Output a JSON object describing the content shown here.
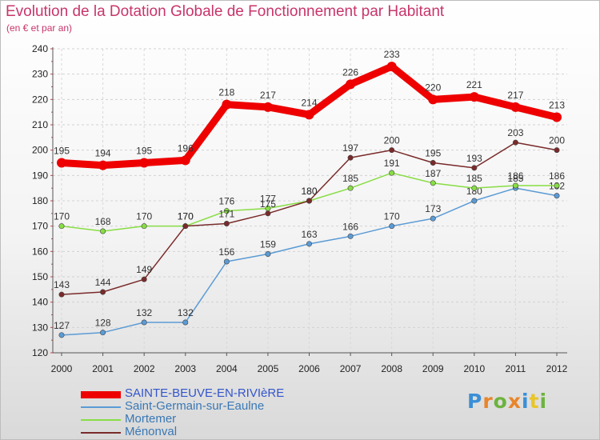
{
  "header": {
    "title": "Evolution de la Dotation Globale de Fonctionnement par Habitant",
    "subtitle": "(en € et par an)"
  },
  "brand": {
    "logo_text": "Proxiti",
    "logo_colors": [
      "#3a8fd6",
      "#e8852a",
      "#6db33f",
      "#e8852a",
      "#3a8fd6",
      "#e8c62a",
      "#6db33f"
    ]
  },
  "chart_data": {
    "type": "line",
    "title": "Evolution de la Dotation Globale de Fonctionnement par Habitant",
    "ylabel": "(en € et par an)",
    "xlabel": "",
    "ylim": [
      120,
      240
    ],
    "yticks": [
      120,
      130,
      140,
      150,
      160,
      170,
      180,
      190,
      200,
      210,
      220,
      230,
      240
    ],
    "categories": [
      "2000",
      "2001",
      "2002",
      "2003",
      "2004",
      "2005",
      "2006",
      "2007",
      "2008",
      "2009",
      "2010",
      "2011",
      "2012"
    ],
    "grid": true,
    "series": [
      {
        "name": "SAINTE-BEUVE-EN-RIVIèRE",
        "color": "#ee0000",
        "legend_color": "#3355cc",
        "emphasis": true,
        "values": [
          195,
          194,
          195,
          196,
          218,
          217,
          214,
          226,
          233,
          220,
          221,
          217,
          213
        ]
      },
      {
        "name": "Saint-Germain-sur-Eaulne",
        "color": "#5b9bd5",
        "legend_color": "#3a78b5",
        "values": [
          127,
          128,
          132,
          132,
          156,
          159,
          163,
          166,
          170,
          173,
          180,
          185,
          182
        ]
      },
      {
        "name": "Mortemer",
        "color": "#88dd44",
        "legend_color": "#3a78b5",
        "values": [
          170,
          168,
          170,
          170,
          176,
          177,
          180,
          185,
          191,
          187,
          185,
          186,
          186
        ]
      },
      {
        "name": "Ménonval",
        "color": "#7a2a2a",
        "legend_color": "#3a78b5",
        "values": [
          143,
          144,
          149,
          170,
          171,
          175,
          180,
          197,
          200,
          195,
          193,
          203,
          200
        ]
      }
    ]
  }
}
